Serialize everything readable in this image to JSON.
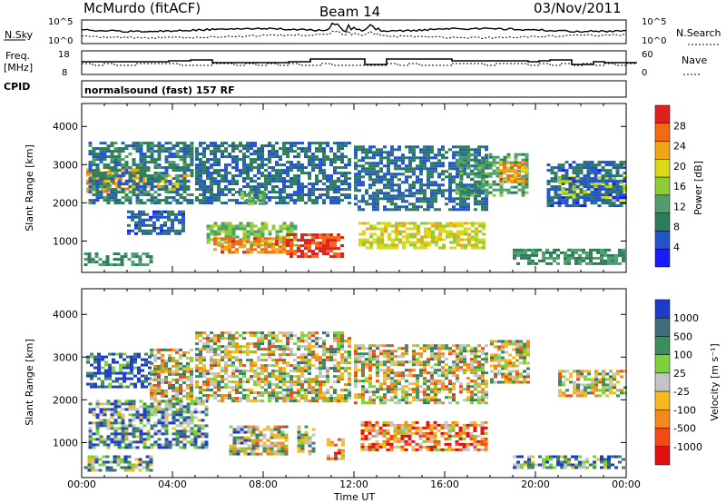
{
  "header": {
    "station": "McMurdo (fitACF)",
    "beam": "Beam 14",
    "date": "03/Nov/2011"
  },
  "noise_panel": {
    "left_label": "N.Sky",
    "left_ticks": [
      "10^5",
      "10^0"
    ],
    "right_label": "N.Search",
    "right_ticks": [
      "10^5",
      "10^0"
    ]
  },
  "freq_panel": {
    "left_label_1": "Freq.",
    "left_label_2": "[MHz]",
    "left_ticks": [
      "18",
      "8"
    ],
    "right_label": "Nave",
    "right_ticks": [
      "60",
      "0"
    ]
  },
  "cpid": {
    "label": "CPID",
    "value": "normalsound (fast) 157 RF"
  },
  "colors": {
    "power_scale": [
      "#1a1aff",
      "#2255cc",
      "#2e7d5a",
      "#4e9e6e",
      "#8fcc3a",
      "#d9d919",
      "#f2a419",
      "#f26a12",
      "#e02020"
    ],
    "velocity_scale": [
      "#e01010",
      "#f24a12",
      "#f28a1a",
      "#f5bb1e",
      "#c4c4c4",
      "#7cd23a",
      "#3a8f5a",
      "#3d6e7a",
      "#1d3ccc"
    ]
  },
  "chart_data": [
    {
      "type": "heatmap",
      "name": "power",
      "title": "",
      "xlabel": "Time UT",
      "ylabel": "Slant Range [km]",
      "xlim": [
        0,
        24
      ],
      "ylim": [
        180,
        4600
      ],
      "x_ticks": [
        "00:00",
        "04:00",
        "08:00",
        "12:00",
        "16:00",
        "20:00",
        "00:00"
      ],
      "y_ticks": [
        "1000",
        "2000",
        "3000",
        "4000"
      ],
      "colorbar_label": "Power [dB]",
      "colorbar_ticks": [
        "4",
        "8",
        "12",
        "16",
        "20",
        "24",
        "28"
      ],
      "colorbar_range": [
        0,
        30
      ],
      "regions": [
        {
          "t0": 0.2,
          "t1": 2.5,
          "r0": 2300,
          "r1": 2900,
          "v": 22
        },
        {
          "t0": 2.5,
          "t1": 4.9,
          "r0": 2350,
          "r1": 2750,
          "v": 20
        },
        {
          "t0": 0.3,
          "t1": 4.9,
          "r0": 2000,
          "r1": 3600,
          "v": 8
        },
        {
          "t0": 0.1,
          "t1": 3.0,
          "r0": 350,
          "r1": 700,
          "v": 10
        },
        {
          "t0": 2.0,
          "t1": 4.5,
          "r0": 1200,
          "r1": 1800,
          "v": 6
        },
        {
          "t0": 5.5,
          "t1": 9.5,
          "r0": 900,
          "r1": 1500,
          "v": 14
        },
        {
          "t0": 5.8,
          "t1": 9.0,
          "r0": 700,
          "r1": 1100,
          "v": 24
        },
        {
          "t0": 9.0,
          "t1": 11.5,
          "r0": 600,
          "r1": 1200,
          "v": 27
        },
        {
          "t0": 5.0,
          "t1": 11.8,
          "r0": 2000,
          "r1": 3600,
          "v": 7
        },
        {
          "t0": 7.0,
          "t1": 8.0,
          "r0": 2000,
          "r1": 2300,
          "v": 13
        },
        {
          "t0": 12.2,
          "t1": 17.8,
          "r0": 800,
          "r1": 1500,
          "v": 18
        },
        {
          "t0": 12.0,
          "t1": 17.8,
          "r0": 1800,
          "r1": 3500,
          "v": 7
        },
        {
          "t0": 16.5,
          "t1": 19.6,
          "r0": 2200,
          "r1": 3300,
          "v": 11
        },
        {
          "t0": 18.4,
          "t1": 19.6,
          "r0": 2600,
          "r1": 3100,
          "v": 22
        },
        {
          "t0": 19.0,
          "t1": 23.9,
          "r0": 400,
          "r1": 800,
          "v": 10
        },
        {
          "t0": 21.0,
          "t1": 23.9,
          "r0": 2100,
          "r1": 2700,
          "v": 17
        },
        {
          "t0": 20.5,
          "t1": 23.9,
          "r0": 1900,
          "r1": 3100,
          "v": 6
        }
      ]
    },
    {
      "type": "heatmap",
      "name": "velocity",
      "title": "",
      "xlabel": "Time UT",
      "ylabel": "Slant Range [km]",
      "xlim": [
        0,
        24
      ],
      "ylim": [
        180,
        4600
      ],
      "x_ticks": [
        "00:00",
        "04:00",
        "08:00",
        "12:00",
        "16:00",
        "20:00",
        "00:00"
      ],
      "y_ticks": [
        "1000",
        "2000",
        "3000",
        "4000"
      ],
      "colorbar_label": "Velocity [m s⁻¹]",
      "colorbar_ticks": [
        "1000",
        "500",
        "100",
        "25",
        "-25",
        "-100",
        "-500",
        "-1000"
      ],
      "regions": [
        {
          "t0": 0.2,
          "t1": 3.0,
          "r0": 2300,
          "r1": 3100,
          "v": 8
        },
        {
          "t0": 3.0,
          "t1": 4.9,
          "r0": 2000,
          "r1": 3200,
          "v": 4
        },
        {
          "t0": 0.3,
          "t1": 5.5,
          "r0": 900,
          "r1": 2000,
          "v": 6
        },
        {
          "t0": 0.1,
          "t1": 3.0,
          "r0": 350,
          "r1": 700,
          "v": 6
        },
        {
          "t0": 6.5,
          "t1": 7.5,
          "r0": 700,
          "r1": 1400,
          "v": 5
        },
        {
          "t0": 7.5,
          "t1": 9.0,
          "r0": 700,
          "r1": 1400,
          "v": 4
        },
        {
          "t0": 9.5,
          "t1": 10.3,
          "r0": 700,
          "r1": 1400,
          "v": 5
        },
        {
          "t0": 10.8,
          "t1": 11.6,
          "r0": 600,
          "r1": 1100,
          "v": 3
        },
        {
          "t0": 5.0,
          "t1": 11.8,
          "r0": 2000,
          "r1": 3600,
          "v": 4
        },
        {
          "t0": 12.3,
          "t1": 17.8,
          "r0": 800,
          "r1": 1500,
          "v": 2
        },
        {
          "t0": 12.0,
          "t1": 17.8,
          "r0": 1900,
          "r1": 3300,
          "v": 4
        },
        {
          "t0": 18.0,
          "t1": 19.7,
          "r0": 2400,
          "r1": 3400,
          "v": 4
        },
        {
          "t0": 19.0,
          "t1": 23.9,
          "r0": 400,
          "r1": 700,
          "v": 6
        },
        {
          "t0": 21.0,
          "t1": 23.9,
          "r0": 2100,
          "r1": 2700,
          "v": 4
        }
      ]
    }
  ]
}
